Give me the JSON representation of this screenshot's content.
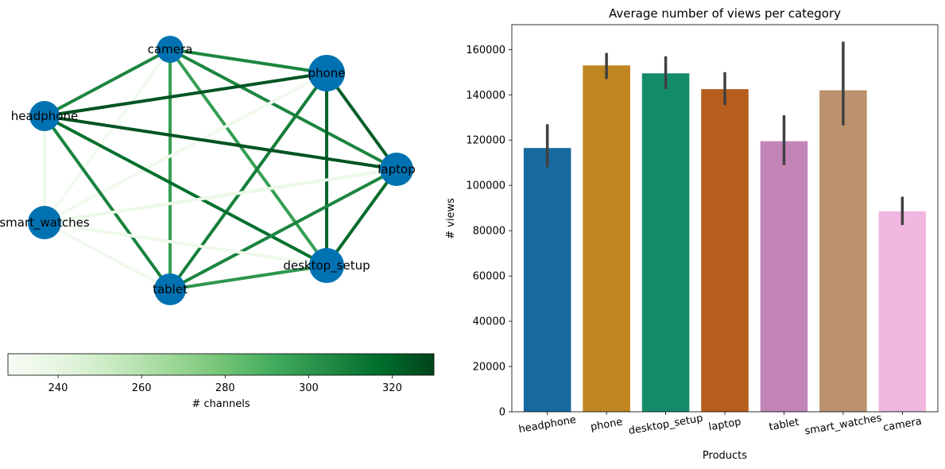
{
  "chart_data": [
    {
      "type": "network",
      "nodes": [
        "camera",
        "phone",
        "headphone",
        "laptop",
        "smart_watches",
        "desktop_setup",
        "tablet"
      ],
      "edges": [
        {
          "source": "camera",
          "target": "phone",
          "channels": 307
        },
        {
          "source": "camera",
          "target": "headphone",
          "channels": 307
        },
        {
          "source": "camera",
          "target": "laptop",
          "channels": 307
        },
        {
          "source": "camera",
          "target": "smart_watches",
          "channels": 232
        },
        {
          "source": "camera",
          "target": "desktop_setup",
          "channels": 297
        },
        {
          "source": "camera",
          "target": "tablet",
          "channels": 297
        },
        {
          "source": "phone",
          "target": "headphone",
          "channels": 325
        },
        {
          "source": "phone",
          "target": "laptop",
          "channels": 322
        },
        {
          "source": "phone",
          "target": "smart_watches",
          "channels": 233
        },
        {
          "source": "phone",
          "target": "desktop_setup",
          "channels": 320
        },
        {
          "source": "phone",
          "target": "tablet",
          "channels": 310
        },
        {
          "source": "headphone",
          "target": "laptop",
          "channels": 325
        },
        {
          "source": "headphone",
          "target": "smart_watches",
          "channels": 236
        },
        {
          "source": "headphone",
          "target": "desktop_setup",
          "channels": 316
        },
        {
          "source": "headphone",
          "target": "tablet",
          "channels": 308
        },
        {
          "source": "laptop",
          "target": "smart_watches",
          "channels": 236
        },
        {
          "source": "laptop",
          "target": "desktop_setup",
          "channels": 318
        },
        {
          "source": "laptop",
          "target": "tablet",
          "channels": 307
        },
        {
          "source": "smart_watches",
          "target": "desktop_setup",
          "channels": 234
        },
        {
          "source": "smart_watches",
          "target": "tablet",
          "channels": 233
        },
        {
          "source": "desktop_setup",
          "target": "tablet",
          "channels": 300
        }
      ],
      "colorbar": {
        "label": "# channels",
        "range": [
          228,
          330
        ],
        "ticks": [
          "240",
          "260",
          "280",
          "300",
          "320"
        ],
        "colormap": "Greens"
      },
      "node_color": "#0072b2"
    },
    {
      "type": "bar",
      "title": "Average number of views per category",
      "xlabel": "Products",
      "ylabel": "# views",
      "ylim": [
        0,
        171000
      ],
      "categories": [
        "headphone",
        "phone",
        "desktop_setup",
        "laptop",
        "tablet",
        "smart_watches",
        "camera"
      ],
      "values": [
        116500,
        153000,
        149500,
        142500,
        119500,
        142000,
        88500
      ],
      "error_low": [
        108000,
        147000,
        142500,
        135500,
        109000,
        126500,
        82500
      ],
      "error_high": [
        127000,
        158500,
        157000,
        150000,
        131000,
        163500,
        95000
      ],
      "colors": [
        "#176a9e",
        "#c08621",
        "#158c69",
        "#b65e1c",
        "#c384b7",
        "#bc916e",
        "#f1b7e0"
      ],
      "yticks": [
        "0",
        "20000",
        "40000",
        "60000",
        "80000",
        "100000",
        "120000",
        "140000",
        "160000"
      ]
    }
  ]
}
